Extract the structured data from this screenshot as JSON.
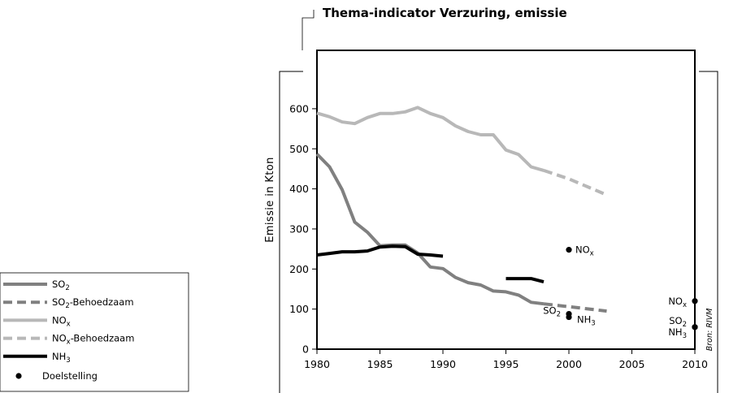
{
  "chart_data": {
    "type": "line",
    "title": "Thema-indicator Verzuring, emissie",
    "ylabel": "Emissie in Kton",
    "xlabel": "",
    "xlim": [
      1980,
      2010
    ],
    "ylim": [
      0,
      650
    ],
    "x_ticks": [
      "1980",
      "1985",
      "1990",
      "1995",
      "2000",
      "2005",
      "2010"
    ],
    "y_ticks": [
      "0",
      "100",
      "200",
      "300",
      "400",
      "500",
      "600"
    ],
    "grid": false,
    "legend_position": "left",
    "source": "Bron: RIVM",
    "colors": {
      "so2": "#808080",
      "nox": "#b8b8b8",
      "nh3": "#000000",
      "target": "#000000"
    },
    "series": [
      {
        "key": "so2",
        "legend": "SO₂",
        "style": "solid",
        "points": [
          [
            1980,
            487
          ],
          [
            1981,
            455
          ],
          [
            1982,
            398
          ],
          [
            1983,
            317
          ],
          [
            1984,
            292
          ],
          [
            1985,
            258
          ],
          [
            1986,
            260
          ],
          [
            1987,
            260
          ],
          [
            1988,
            240
          ],
          [
            1989,
            205
          ],
          [
            1990,
            201
          ],
          [
            1991,
            179
          ],
          [
            1992,
            166
          ],
          [
            1993,
            160
          ],
          [
            1994,
            145
          ],
          [
            1995,
            143
          ],
          [
            1996,
            135
          ],
          [
            1997,
            117
          ],
          [
            1998,
            113
          ]
        ]
      },
      {
        "key": "so2_behoedzaam",
        "legend": "SO₂-Behoedzaam",
        "style": "dashed",
        "points": [
          [
            1998,
            113
          ],
          [
            2000,
            106
          ],
          [
            2003,
            95
          ]
        ]
      },
      {
        "key": "nox",
        "legend": "NOₓ",
        "style": "solid",
        "points": [
          [
            1980,
            589
          ],
          [
            1981,
            580
          ],
          [
            1982,
            567
          ],
          [
            1983,
            563
          ],
          [
            1984,
            578
          ],
          [
            1985,
            588
          ],
          [
            1986,
            588
          ],
          [
            1987,
            592
          ],
          [
            1988,
            603
          ],
          [
            1989,
            588
          ],
          [
            1990,
            578
          ],
          [
            1991,
            557
          ],
          [
            1992,
            543
          ],
          [
            1993,
            535
          ],
          [
            1994,
            535
          ],
          [
            1995,
            497
          ],
          [
            1996,
            486
          ],
          [
            1997,
            455
          ],
          [
            1998,
            446
          ]
        ]
      },
      {
        "key": "nox_behoedzaam",
        "legend": "NOₓ-Behoedzaam",
        "style": "dashed",
        "points": [
          [
            1998,
            446
          ],
          [
            2000,
            425
          ],
          [
            2003,
            385
          ]
        ]
      },
      {
        "key": "nh3",
        "legend": "NH₃",
        "style": "solid",
        "segments": [
          [
            [
              1980,
              235
            ],
            [
              1981,
              239
            ],
            [
              1982,
              243
            ],
            [
              1983,
              243
            ],
            [
              1984,
              245
            ],
            [
              1985,
              255
            ],
            [
              1986,
              257
            ],
            [
              1987,
              256
            ],
            [
              1988,
              237
            ],
            [
              1989,
              235
            ],
            [
              1990,
              232
            ]
          ],
          [
            [
              1995,
              176
            ],
            [
              1996,
              176
            ],
            [
              1997,
              176
            ],
            [
              1998,
              168
            ]
          ]
        ]
      }
    ],
    "targets": {
      "legend": "Doelstelling",
      "points": [
        {
          "x": 2000,
          "y": 248,
          "label": "NOₓ"
        },
        {
          "x": 2000,
          "y": 88,
          "label": "SO₂"
        },
        {
          "x": 2000,
          "y": 80,
          "label": "NH₃"
        },
        {
          "x": 2010,
          "y": 120,
          "label": "NOₓ"
        },
        {
          "x": 2010,
          "y": 55,
          "label": "SO₂"
        },
        {
          "x": 2010,
          "y": 55,
          "label": "NH₃"
        }
      ]
    }
  }
}
